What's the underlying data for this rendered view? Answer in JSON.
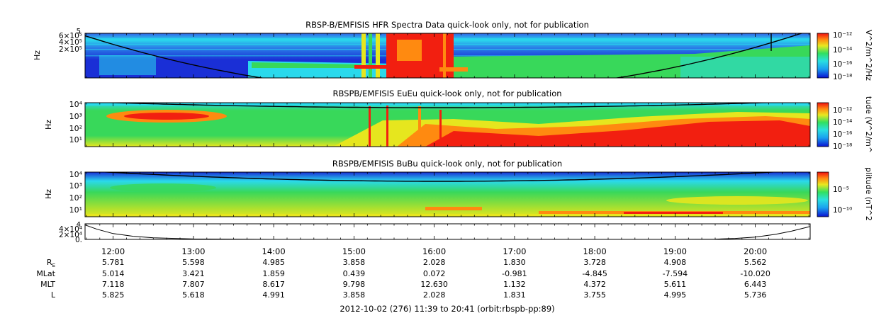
{
  "chart_data": [
    {
      "type": "heatmap",
      "title": "RBSP-B/EMFISIS  HFR Spectra Data quick-look only, not for publication",
      "ylabel": "Hz",
      "yticks": [
        {
          "label": "6×10⁵"
        },
        {
          "label": "4×10⁵"
        },
        {
          "label": "2×10⁵"
        }
      ],
      "top_tick": "5",
      "colorbar_label": "V^2/m^2/Hz",
      "colorbar_ticks": [
        {
          "label": "10⁻¹²"
        },
        {
          "label": "10⁻¹⁴"
        },
        {
          "label": "10⁻¹⁶"
        },
        {
          "label": "10⁻¹⁸"
        }
      ]
    },
    {
      "type": "heatmap",
      "title": "RBSPB/EMFISIS  EuEu quick-look only, not for publication",
      "ylabel": "Hz",
      "yticks": [
        {
          "label": "10⁴"
        },
        {
          "label": "10³"
        },
        {
          "label": "10²"
        },
        {
          "label": "10¹"
        }
      ],
      "colorbar_label": "tude (V^2/m^",
      "colorbar_ticks": [
        {
          "label": "10⁻¹²"
        },
        {
          "label": "10⁻¹⁴"
        },
        {
          "label": "10⁻¹⁶"
        },
        {
          "label": "10⁻¹⁸"
        }
      ]
    },
    {
      "type": "heatmap",
      "title": "RBSPB/EMFISIS  BuBu quick-look only, not for publication",
      "ylabel": "Hz",
      "yticks": [
        {
          "label": "10⁴"
        },
        {
          "label": "10³"
        },
        {
          "label": "10²"
        },
        {
          "label": "10¹"
        }
      ],
      "colorbar_label": "plitude (nT^2",
      "colorbar_ticks": [
        {
          "label": "10⁻⁵"
        },
        {
          "label": "10⁻¹⁰"
        }
      ]
    },
    {
      "type": "line",
      "title": "",
      "yticks": [
        {
          "label": "4×10⁴"
        },
        {
          "label": "2×10⁴"
        },
        {
          "label": "0."
        }
      ],
      "top_tick": "4",
      "ylim": [
        0,
        40000
      ],
      "x_hours": [
        11.65,
        11.8,
        12.0,
        12.25,
        12.5,
        13.0,
        14.0,
        15.0,
        16.0,
        17.0,
        18.0,
        19.0,
        19.5,
        19.75,
        20.0,
        20.25,
        20.45,
        20.68
      ],
      "values": [
        37000,
        26000,
        15000,
        8000,
        4000,
        1000,
        0,
        0,
        0,
        0,
        0,
        0,
        500,
        2500,
        6000,
        13000,
        21000,
        33000
      ]
    }
  ],
  "x_axis": {
    "range_hours": [
      11.65,
      20.683
    ],
    "tick_hours": [
      12,
      13,
      14,
      15,
      16,
      17,
      18,
      19,
      20
    ],
    "tick_labels": [
      "12:00",
      "13:00",
      "14:00",
      "15:00",
      "16:00",
      "17:00",
      "18:00",
      "19:00",
      "20:00"
    ]
  },
  "ephemeris": [
    {
      "label": "R",
      "sub": "E",
      "values": [
        "5.781",
        "5.598",
        "4.985",
        "3.858",
        "2.028",
        "1.830",
        "3.728",
        "4.908",
        "5.562"
      ]
    },
    {
      "label": "MLat",
      "sub": "",
      "values": [
        "5.014",
        "3.421",
        "1.859",
        "0.439",
        "0.072",
        "-0.981",
        "-4.845",
        "-7.594",
        "-10.020"
      ]
    },
    {
      "label": "MLT",
      "sub": "",
      "values": [
        "7.118",
        "7.807",
        "8.617",
        "9.798",
        "12.630",
        "1.132",
        "4.372",
        "5.611",
        "6.443"
      ]
    },
    {
      "label": "L",
      "sub": "",
      "values": [
        "5.825",
        "5.618",
        "4.991",
        "3.858",
        "2.028",
        "1.831",
        "3.755",
        "4.995",
        "5.736"
      ]
    }
  ],
  "footer": "2012-10-02 (276) 11:39 to 20:41 (orbit:rbspb-pp:89)",
  "colors": {
    "blue": "#1a2fd6",
    "cyan": "#2ad9ec",
    "green": "#38d85a",
    "yellow": "#e6e61e",
    "orange": "#ff8a10",
    "red": "#f21f10",
    "curve": "#000000"
  }
}
